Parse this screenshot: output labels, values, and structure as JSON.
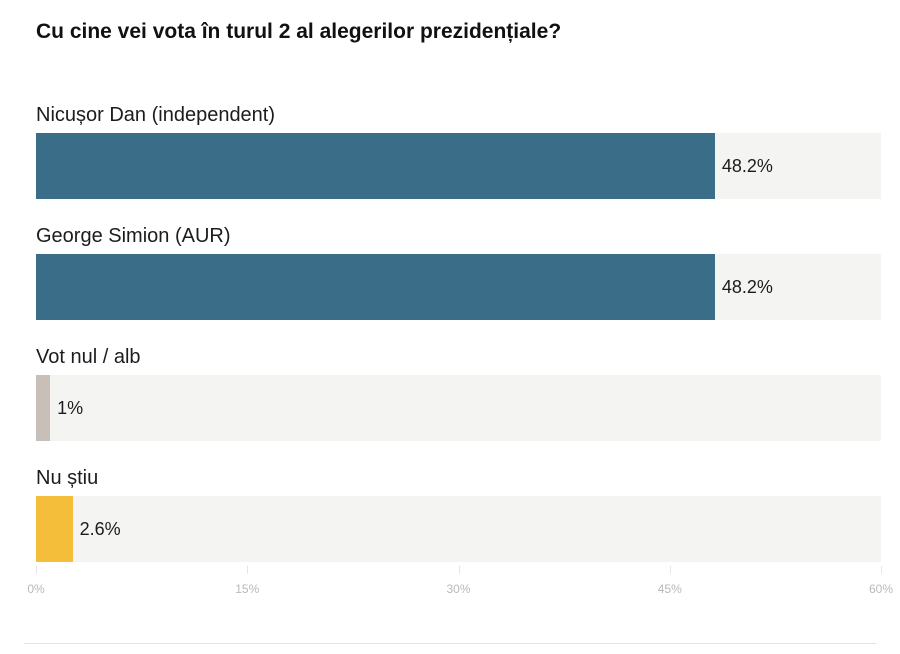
{
  "chart_data": {
    "type": "bar",
    "orientation": "horizontal",
    "title": "Cu cine vei vota în turul 2 al alegerilor prezidențiale?",
    "categories": [
      "Nicușor Dan (independent)",
      "George Simion (AUR)",
      "Vot nul / alb",
      "Nu știu"
    ],
    "values": [
      48.2,
      48.2,
      1,
      2.6
    ],
    "value_labels": [
      "48.2%",
      "48.2%",
      "1%",
      "2.6%"
    ],
    "colors": [
      "#3a6e88",
      "#3a6e88",
      "#c9bfb9",
      "#f4bd3a"
    ],
    "track_color": "#f4f4f2",
    "xlim": [
      0,
      60
    ],
    "x_ticks": [
      0,
      15,
      30,
      45,
      60
    ],
    "x_tick_labels": [
      "0%",
      "15%",
      "30%",
      "45%",
      "60%"
    ],
    "grid": false,
    "legend": "none"
  }
}
